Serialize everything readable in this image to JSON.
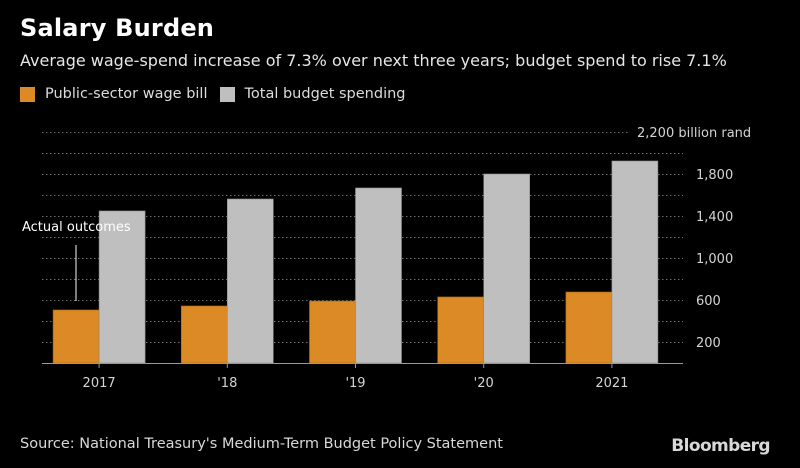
{
  "header": {
    "title": "Salary Burden",
    "subtitle": "Average wage-spend increase of 7.3% over next three years; budget spend to rise 7.1%"
  },
  "legend": [
    {
      "label": "Public-sector wage bill",
      "color": "#dc8a25"
    },
    {
      "label": "Total budget spending",
      "color": "#bfbfbf"
    }
  ],
  "footer": {
    "source": "Source: National Treasury's Medium-Term Budget Policy Statement",
    "brand": "Bloomberg"
  },
  "chart_data": {
    "type": "bar",
    "title": "Salary Burden",
    "subtitle": "Average wage-spend increase of 7.3% over next three years; budget spend to rise 7.1%",
    "categories": [
      "2017",
      "'18",
      "'19",
      "'20",
      "2021"
    ],
    "series": [
      {
        "name": "Public-sector wage bill",
        "color": "#dc8a25",
        "values": [
          505,
          543,
          590,
          629,
          676
        ]
      },
      {
        "name": "Total budget spending",
        "color": "#bfbfbf",
        "values": [
          1448,
          1562,
          1667,
          1800,
          1924
        ]
      }
    ],
    "xlabel": "",
    "ylabel": "billion rand",
    "ylim": [
      0,
      2200
    ],
    "yticks": [
      200,
      600,
      1000,
      1400,
      1800
    ],
    "ytick_labels": [
      "200",
      "600",
      "1,000",
      "1,400",
      "1,800"
    ],
    "top_label": "2,200 billion rand",
    "gridlines": [
      200,
      400,
      600,
      800,
      1000,
      1200,
      1400,
      1600,
      1800,
      2000,
      2200
    ],
    "grid": true,
    "y_axis_position": "right",
    "legend_position": "top-left",
    "annotation": {
      "text": "Actual outcomes",
      "category": "2017"
    }
  }
}
